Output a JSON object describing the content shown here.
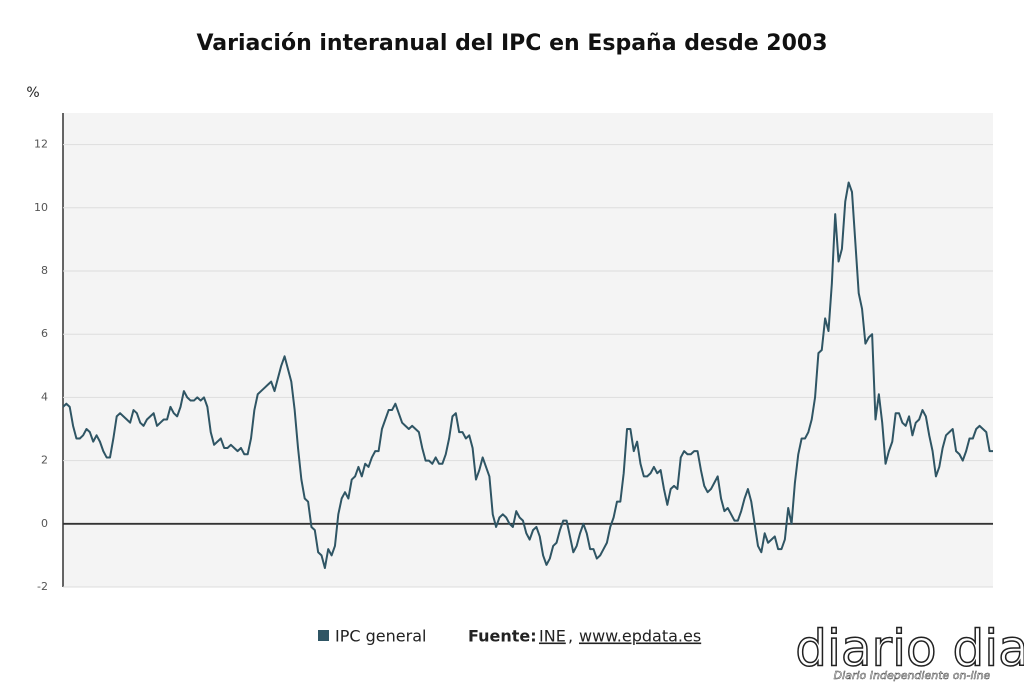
{
  "chart_data": {
    "type": "line",
    "title": "Variación interanual del IPC en España desde 2003",
    "y_label": "%",
    "ylim": [
      -2,
      13
    ],
    "yticks": [
      -2,
      0,
      2,
      4,
      6,
      8,
      10,
      12
    ],
    "grid": true,
    "series": [
      {
        "name": "IPC general",
        "color": "#2f5564",
        "values": [
          3.7,
          3.8,
          3.7,
          3.1,
          2.7,
          2.7,
          2.8,
          3.0,
          2.9,
          2.6,
          2.8,
          2.6,
          2.3,
          2.1,
          2.1,
          2.7,
          3.4,
          3.5,
          3.4,
          3.3,
          3.2,
          3.6,
          3.5,
          3.2,
          3.1,
          3.3,
          3.4,
          3.5,
          3.1,
          3.2,
          3.3,
          3.3,
          3.7,
          3.5,
          3.4,
          3.7,
          4.2,
          4.0,
          3.9,
          3.9,
          4.0,
          3.9,
          4.0,
          3.7,
          2.9,
          2.5,
          2.6,
          2.7,
          2.4,
          2.4,
          2.5,
          2.4,
          2.3,
          2.4,
          2.2,
          2.2,
          2.7,
          3.6,
          4.1,
          4.2,
          4.3,
          4.4,
          4.5,
          4.2,
          4.6,
          5.0,
          5.3,
          4.9,
          4.5,
          3.6,
          2.4,
          1.4,
          0.8,
          0.7,
          -0.1,
          -0.2,
          -0.9,
          -1.0,
          -1.4,
          -0.8,
          -1.0,
          -0.7,
          0.3,
          0.8,
          1.0,
          0.8,
          1.4,
          1.5,
          1.8,
          1.5,
          1.9,
          1.8,
          2.1,
          2.3,
          2.3,
          3.0,
          3.3,
          3.6,
          3.6,
          3.8,
          3.5,
          3.2,
          3.1,
          3.0,
          3.1,
          3.0,
          2.9,
          2.4,
          2.0,
          2.0,
          1.9,
          2.1,
          1.9,
          1.9,
          2.2,
          2.7,
          3.4,
          3.5,
          2.9,
          2.9,
          2.7,
          2.8,
          2.4,
          1.4,
          1.7,
          2.1,
          1.8,
          1.5,
          0.3,
          -0.1,
          0.2,
          0.3,
          0.2,
          0.0,
          -0.1,
          0.4,
          0.2,
          0.1,
          -0.3,
          -0.5,
          -0.2,
          -0.1,
          -0.4,
          -1.0,
          -1.3,
          -1.1,
          -0.7,
          -0.6,
          -0.2,
          0.1,
          0.1,
          -0.4,
          -0.9,
          -0.7,
          -0.3,
          0.0,
          -0.3,
          -0.8,
          -0.8,
          -1.1,
          -1.0,
          -0.8,
          -0.6,
          -0.1,
          0.2,
          0.7,
          0.7,
          1.6,
          3.0,
          3.0,
          2.3,
          2.6,
          1.9,
          1.5,
          1.5,
          1.6,
          1.8,
          1.6,
          1.7,
          1.1,
          0.6,
          1.1,
          1.2,
          1.1,
          2.1,
          2.3,
          2.2,
          2.2,
          2.3,
          2.3,
          1.7,
          1.2,
          1.0,
          1.1,
          1.3,
          1.5,
          0.8,
          0.4,
          0.5,
          0.3,
          0.1,
          0.1,
          0.4,
          0.8,
          1.1,
          0.7,
          0.0,
          -0.7,
          -0.9,
          -0.3,
          -0.6,
          -0.5,
          -0.4,
          -0.8,
          -0.8,
          -0.5,
          0.5,
          0.0,
          1.3,
          2.2,
          2.7,
          2.7,
          2.9,
          3.3,
          4.0,
          5.4,
          5.5,
          6.5,
          6.1,
          7.6,
          9.8,
          8.3,
          8.7,
          10.2,
          10.8,
          10.5,
          8.9,
          7.3,
          6.8,
          5.7,
          5.9,
          6.0,
          3.3,
          4.1,
          3.2,
          1.9,
          2.3,
          2.6,
          3.5,
          3.5,
          3.2,
          3.1,
          3.4,
          2.8,
          3.2,
          3.3,
          3.6,
          3.4,
          2.8,
          2.3,
          1.5,
          1.8,
          2.4,
          2.8,
          2.9,
          3.0,
          2.3,
          2.2,
          2.0,
          2.3,
          2.7,
          2.7,
          3.0,
          3.1,
          3.0,
          2.9,
          2.3,
          2.3
        ]
      }
    ],
    "source": {
      "label": "Fuente:",
      "links": [
        "INE",
        "www.epdata.es"
      ],
      "separator": ","
    }
  },
  "logo": {
    "name": "diario dia",
    "tagline": "Diario Independiente on-line"
  }
}
